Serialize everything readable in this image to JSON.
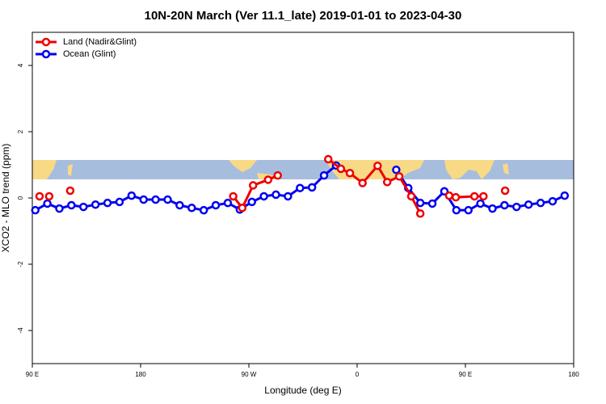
{
  "chart_data": {
    "type": "line",
    "title": "10N-20N March (Ver 11.1_late)   2019-01-01 to 2023-04-30",
    "x_label": "Longitude (deg E)",
    "y_label": "XCO2 - MLO trend (ppm)",
    "xlim": [
      90,
      540
    ],
    "xticks": [
      {
        "value": 90,
        "label": "90 E"
      },
      {
        "value": 180,
        "label": "180"
      },
      {
        "value": 270,
        "label": "90 W"
      },
      {
        "value": 360,
        "label": "0"
      },
      {
        "value": 450,
        "label": "90 E"
      },
      {
        "value": 540,
        "label": "180"
      }
    ],
    "ylim": [
      -5,
      5
    ],
    "yticks": [
      -4,
      -2,
      0,
      2,
      4
    ],
    "legend": "top-left",
    "series": [
      {
        "name": "Land (Nadir&Glint)",
        "color": "#ee0000",
        "x": [
          96,
          null,
          104,
          null,
          121.5,
          null,
          257,
          264.5,
          273.5,
          286,
          294,
          null,
          336,
          346.5,
          354,
          364.5,
          377,
          385,
          395,
          405,
          412.5,
          null,
          436.5,
          442,
          457.5,
          465,
          null,
          483
        ],
        "values": [
          0.05,
          null,
          0.05,
          null,
          0.22,
          null,
          0.05,
          -0.3,
          0.38,
          0.55,
          0.68,
          null,
          1.17,
          0.88,
          0.75,
          0.45,
          0.97,
          0.48,
          0.65,
          0.05,
          -0.47,
          null,
          0.07,
          0.02,
          0.05,
          0.05,
          null,
          0.22
        ]
      },
      {
        "name": "Ocean (Glint)",
        "color": "#0000ee",
        "x": [
          92.5,
          102.5,
          112.5,
          122.5,
          132.5,
          142.5,
          152.5,
          162.5,
          172.5,
          182.5,
          192.5,
          202.5,
          212.5,
          222.5,
          232.5,
          242.5,
          252.5,
          262.5,
          272.5,
          282.5,
          292.5,
          302.5,
          312.5,
          322.5,
          332.5,
          342.5,
          352.5,
          362.5,
          372.5,
          382.5,
          392.5,
          402.5,
          412.5,
          422.5,
          432.5,
          442.5,
          452.5,
          462.5,
          472.5,
          482.5,
          492.5,
          502.5,
          512.5,
          522.5,
          532.5
        ],
        "values": [
          -0.37,
          -0.17,
          -0.32,
          -0.22,
          -0.27,
          -0.2,
          -0.15,
          -0.12,
          0.07,
          -0.05,
          -0.05,
          -0.05,
          -0.22,
          -0.3,
          -0.37,
          -0.22,
          -0.15,
          -0.35,
          -0.12,
          0.05,
          0.1,
          0.05,
          0.3,
          0.32,
          0.68,
          0.98,
          null,
          null,
          null,
          null,
          0.85,
          0.3,
          -0.15,
          -0.17,
          0.2,
          -0.37,
          -0.37,
          -0.17,
          -0.32,
          -0.22,
          -0.27,
          -0.2,
          -0.15,
          -0.1,
          0.07
        ]
      }
    ]
  }
}
